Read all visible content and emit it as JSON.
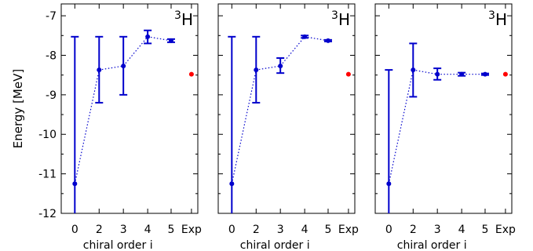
{
  "chart_data": [
    {
      "type": "scatter",
      "annotation": {
        "mass_number": "3",
        "symbol": "H"
      },
      "ylabel": "Energy [MeV]",
      "xlabel": "chiral order i",
      "ylim": [
        -12,
        -6.7
      ],
      "yticks": [
        -12,
        -11,
        -10,
        -9,
        -8,
        -7
      ],
      "categories": [
        "0",
        "2",
        "3",
        "4",
        "5",
        "Exp"
      ],
      "series": [
        {
          "color": "#0000cc",
          "x": [
            "0",
            "2",
            "3",
            "4",
            "5"
          ],
          "y": [
            -11.25,
            -8.37,
            -8.27,
            -7.53,
            -7.63
          ],
          "err_low": [
            -12.0,
            -9.2,
            -9.0,
            -7.7,
            -7.67
          ],
          "err_high": [
            -7.53,
            -7.53,
            -7.53,
            -7.37,
            -7.59
          ]
        },
        {
          "color": "#ff0000",
          "x": [
            "Exp"
          ],
          "y": [
            -8.48
          ]
        }
      ]
    },
    {
      "type": "scatter",
      "annotation": {
        "mass_number": "3",
        "symbol": "H"
      },
      "xlabel": "chiral order i",
      "ylim": [
        -12,
        -6.7
      ],
      "yticks": [
        -12,
        -11,
        -10,
        -9,
        -8,
        -7
      ],
      "categories": [
        "0",
        "2",
        "3",
        "4",
        "5",
        "Exp"
      ],
      "series": [
        {
          "color": "#0000cc",
          "x": [
            "0",
            "2",
            "3",
            "4",
            "5"
          ],
          "y": [
            -11.25,
            -8.37,
            -8.27,
            -7.53,
            -7.63
          ],
          "err_low": [
            -12.0,
            -9.2,
            -8.45,
            -7.56,
            -7.65
          ],
          "err_high": [
            -7.53,
            -7.53,
            -8.07,
            -7.5,
            -7.61
          ]
        },
        {
          "color": "#ff0000",
          "x": [
            "Exp"
          ],
          "y": [
            -8.48
          ]
        }
      ]
    },
    {
      "type": "scatter",
      "annotation": {
        "mass_number": "3",
        "symbol": "H"
      },
      "xlabel": "chiral order i",
      "ylim": [
        -12,
        -6.7
      ],
      "yticks": [
        -12,
        -11,
        -10,
        -9,
        -8,
        -7
      ],
      "categories": [
        "0",
        "2",
        "3",
        "4",
        "5",
        "Exp"
      ],
      "series": [
        {
          "color": "#0000cc",
          "x": [
            "0",
            "2",
            "3",
            "4",
            "5"
          ],
          "y": [
            -11.25,
            -8.37,
            -8.48,
            -8.48,
            -8.48
          ],
          "err_low": [
            -12.0,
            -9.05,
            -8.62,
            -8.52,
            -8.5
          ],
          "err_high": [
            -8.37,
            -7.7,
            -8.33,
            -8.44,
            -8.46
          ]
        },
        {
          "color": "#ff0000",
          "x": [
            "Exp"
          ],
          "y": [
            -8.48
          ]
        }
      ]
    }
  ]
}
